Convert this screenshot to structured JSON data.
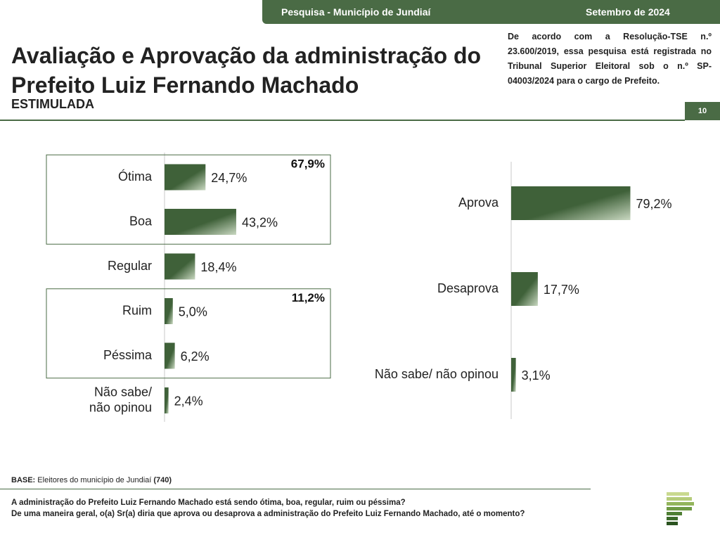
{
  "header": {
    "survey": "Pesquisa - Município de Jundiaí",
    "date": "Setembro de 2024"
  },
  "title": "Avaliação e Aprovação da administração do Prefeito Luiz Fernando Machado",
  "subtitle": "ESTIMULADA",
  "registry_note": "De acordo com a Resolução-TSE n.º 23.600/2019, essa pesquisa está registrada no Tribunal Superior Eleitoral sob o n.º SP-04003/2024 para o cargo de Prefeito.",
  "page_number": "10",
  "base": {
    "label": "BASE:",
    "text": " Eleitores do município de Jundiaí ",
    "count": "(740)"
  },
  "questions": [
    "A administração do Prefeito Luiz Fernando Machado está sendo ótima, boa, regular, ruim ou péssima?",
    "De uma maneira geral, o(a) Sr(a) diria que aprova ou desaprova a administração do Prefeito Luiz Fernando Machado, até o momento?"
  ],
  "colors": {
    "accent": "#4a6b45",
    "bar_dark": "#3f6139",
    "bar_light": "#c9d8c1"
  },
  "chart_data": [
    {
      "type": "bar",
      "orientation": "horizontal",
      "categories": [
        "Ótima",
        "Boa",
        "Regular",
        "Ruim",
        "Péssima",
        "Não sabe/ não opinou"
      ],
      "values": [
        24.7,
        43.2,
        18.4,
        5.0,
        6.2,
        2.4
      ],
      "value_labels": [
        "24,7%",
        "43,2%",
        "18,4%",
        "5,0%",
        "6,2%",
        "2,4%"
      ],
      "groups": [
        {
          "categories": [
            "Ótima",
            "Boa"
          ],
          "label": "67,9%"
        },
        {
          "categories": [
            "Ruim",
            "Péssima"
          ],
          "label": "11,2%"
        }
      ],
      "xlim": [
        0,
        100
      ]
    },
    {
      "type": "bar",
      "orientation": "horizontal",
      "categories": [
        "Aprova",
        "Desaprova",
        "Não sabe/ não opinou"
      ],
      "values": [
        79.2,
        17.7,
        3.1
      ],
      "value_labels": [
        "79,2%",
        "17,7%",
        "3,1%"
      ],
      "xlim": [
        0,
        100
      ]
    }
  ]
}
